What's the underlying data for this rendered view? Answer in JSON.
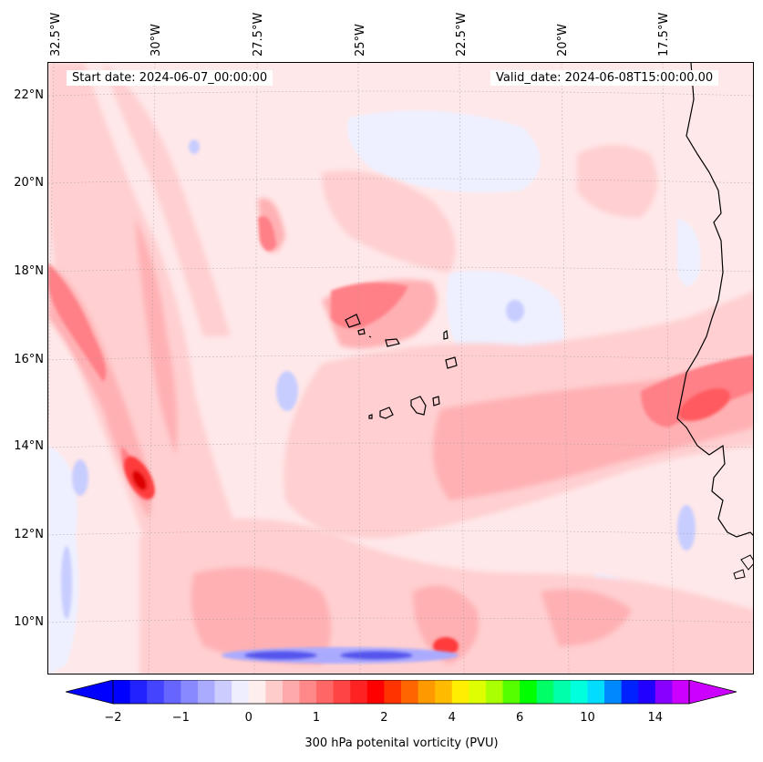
{
  "map": {
    "start_label": "Start date: 2024-06-07_00:00:00",
    "valid_label": "Valid_date: 2024-06-08T15:00:00.00",
    "lon_labels": [
      "32.5°W",
      "30°W",
      "27.5°W",
      "25°W",
      "22.5°W",
      "20°W",
      "17.5°W"
    ],
    "lat_labels": [
      "22°N",
      "20°N",
      "18°N",
      "16°N",
      "14°N",
      "12°N",
      "10°N"
    ]
  },
  "colorbar": {
    "label": "300 hPa potenital vorticity (PVU)",
    "ticks": [
      "−2",
      "−1",
      "0",
      "1",
      "2",
      "4",
      "6",
      "10",
      "14"
    ],
    "colors": [
      "#0000ff",
      "#2222ff",
      "#4444ff",
      "#6666ff",
      "#8888ff",
      "#aaaaff",
      "#ccccff",
      "#eeeeff",
      "#ffeeee",
      "#ffcccc",
      "#ffaaaa",
      "#ff8888",
      "#ff6666",
      "#ff4444",
      "#ff2222",
      "#ff0000",
      "#ff3300",
      "#ff6600",
      "#ff9900",
      "#ffbb00",
      "#ffee00",
      "#ddff00",
      "#aaff00",
      "#55ff00",
      "#00ff00",
      "#00ff66",
      "#00ffaa",
      "#00ffdd",
      "#00ddff",
      "#0088ff",
      "#0022ff",
      "#2200ff",
      "#8800ff",
      "#cc00ff"
    ],
    "tick_positions_index": [
      0,
      4,
      8,
      12,
      16,
      20,
      24,
      28,
      32
    ]
  }
}
